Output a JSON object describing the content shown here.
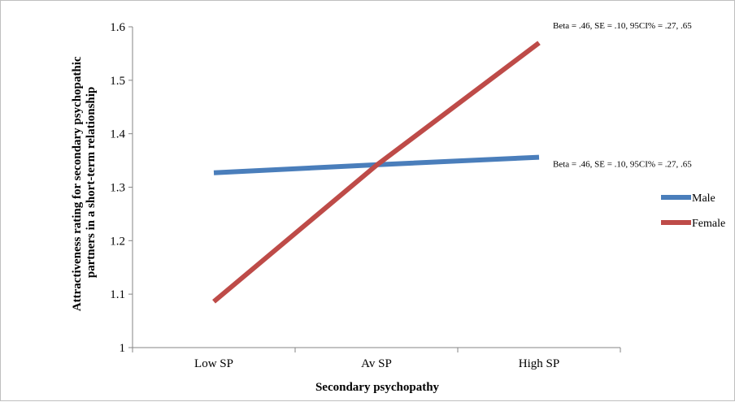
{
  "chart_data": {
    "type": "line",
    "categories": [
      "Low SP",
      "Av SP",
      "High SP"
    ],
    "series": [
      {
        "name": "Male",
        "values": [
          1.327,
          1.342,
          1.356
        ],
        "color": "#4a7ebb"
      },
      {
        "name": "Female",
        "values": [
          1.086,
          1.341,
          1.57
        ],
        "color": "#be4b48"
      }
    ],
    "title": "",
    "xlabel": "Secondary psychopathy",
    "ylabel_lines": [
      "Attractiveness rating for secondary psychopathic",
      "partners in a short-term relationship"
    ],
    "ylim": [
      1,
      1.6
    ],
    "yticks": [
      "1",
      "1.1",
      "1.2",
      "1.3",
      "1.4",
      "1.5",
      "1.6"
    ],
    "grid": false,
    "legend_position": "right",
    "annotations": [
      {
        "text": "Beta = .46, SE = .10,  95CI% = .27, .65",
        "series": "Female"
      },
      {
        "text": "Beta = .46, SE = .10,  95CI% = .27, .65",
        "series": "Male"
      }
    ]
  }
}
